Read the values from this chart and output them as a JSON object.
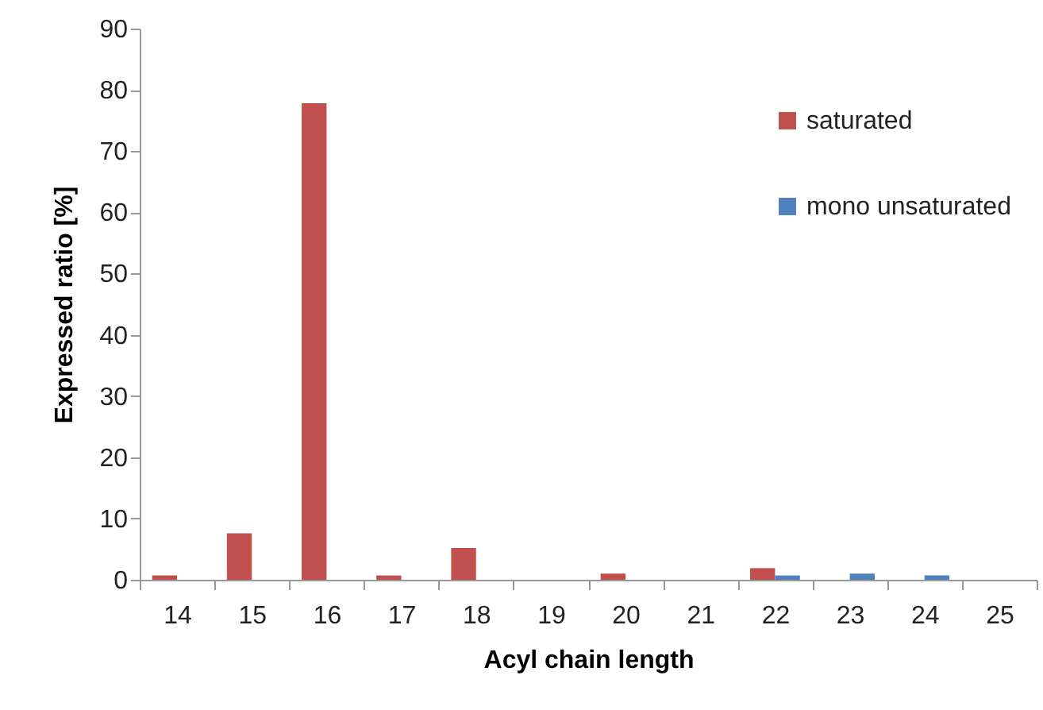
{
  "chart_data": {
    "type": "bar",
    "xlabel": "Acyl chain length",
    "ylabel": "Expressed ratio [%]",
    "categories": [
      "14",
      "15",
      "16",
      "17",
      "18",
      "19",
      "20",
      "21",
      "22",
      "23",
      "24",
      "25"
    ],
    "series": [
      {
        "name": "saturated",
        "color": "#c0504d",
        "values": [
          0.7,
          7.6,
          77.8,
          0.7,
          5.2,
          0,
          1.0,
          0,
          1.9,
          0,
          0,
          0
        ]
      },
      {
        "name": "mono unsaturated",
        "color": "#4f81bd",
        "values": [
          0,
          0,
          0,
          0,
          0,
          0,
          0,
          0,
          0.7,
          1.0,
          0.7,
          0
        ]
      }
    ],
    "ylim": [
      0,
      90
    ],
    "yticks": [
      0,
      10,
      20,
      30,
      40,
      50,
      60,
      70,
      80,
      90
    ],
    "grid": false,
    "legend": "top right"
  }
}
